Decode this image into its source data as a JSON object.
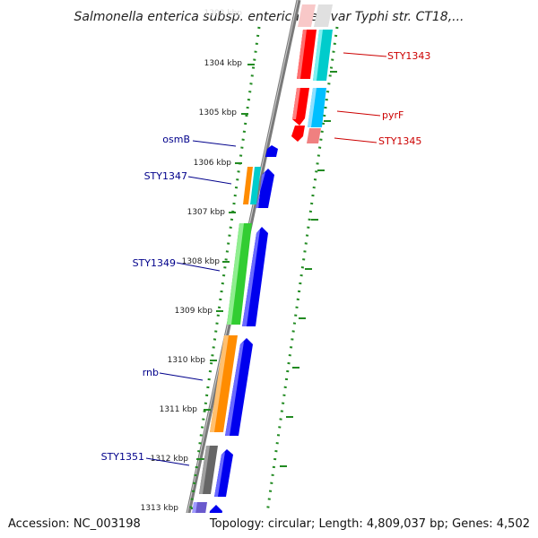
{
  "title": "Salmonella enterica subsp. enterica serovar Typhi str. CT18,...",
  "accession": "Accession: NC_003198",
  "summary": "Topology: circular; Length: 4,809,037 bp; Genes: 4,502",
  "ruler": {
    "faded_label": "1303 kbp",
    "ticks": [
      "1304 kbp",
      "1305 kbp",
      "1306 kbp",
      "1307 kbp",
      "1308 kbp",
      "1309 kbp",
      "1310 kbp",
      "1311 kbp",
      "1312 kbp",
      "1313 kbp"
    ]
  },
  "labels": {
    "sty1343": "STY1343",
    "pyrF": "pyrF",
    "sty1345": "STY1345",
    "osmB": "osmB",
    "sty1347": "STY1347",
    "sty1349": "STY1349",
    "rnb": "rnb",
    "sty1351": "STY1351"
  },
  "colors": {
    "red_label": "#cc0000",
    "blue_label": "#00008b",
    "backbone": "#808080",
    "dotted": "#228b22",
    "red": "#ff0000",
    "cyan": "#00cccc",
    "skyblue": "#00bfff",
    "pink": "#f08080",
    "blue": "#0000ee",
    "orange": "#ff8c00",
    "green": "#32cd32",
    "gray": "#666666",
    "purple": "#6a5acd"
  }
}
